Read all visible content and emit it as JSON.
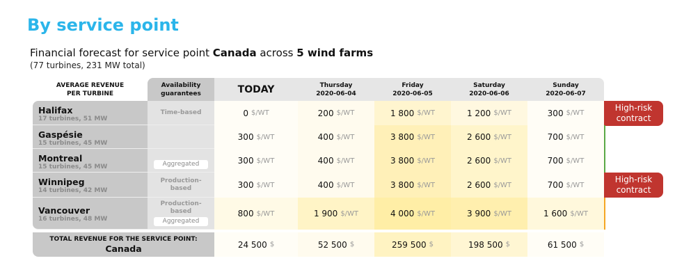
{
  "title": "By service point",
  "subtitle": {
    "pre": "Financial forecast for service point ",
    "sp": "Canada",
    "mid": " across ",
    "farms": "5 wind farms"
  },
  "summary": "(77 turbines, 231 MW total)",
  "headers": {
    "avg": "AVERAGE REVENUE PER TURBINE",
    "avail": "Availability guarantees",
    "today": "TODAY",
    "days": [
      {
        "day": "Thursday",
        "date": "2020-06-04"
      },
      {
        "day": "Friday",
        "date": "2020-06-05"
      },
      {
        "day": "Saturday",
        "date": "2020-06-06"
      },
      {
        "day": "Sunday",
        "date": "2020-06-07"
      }
    ]
  },
  "unit": "$/WT",
  "total_unit": "$",
  "rows": [
    {
      "name": "Halifax",
      "info": "17 turbines, 51 MW",
      "avail": "Time-based",
      "pill": "",
      "values": [
        "0",
        "200",
        "1 800",
        "1 200",
        "300"
      ],
      "colors": [
        "#fffdf6",
        "#fffbee",
        "#fff5cf",
        "#fff8e0",
        "#fffdf6"
      ],
      "badge": "High-risk contract",
      "marker": ""
    },
    {
      "name": "Gaspésie",
      "info": "15 turbines, 45 MW",
      "avail": "",
      "pill": "",
      "values": [
        "300",
        "400",
        "3 800",
        "2 600",
        "700"
      ],
      "colors": [
        "#fffdf6",
        "#fffbee",
        "#fff0b8",
        "#fff5cb",
        "#fffdf6"
      ],
      "badge": "",
      "marker": "#5aa845"
    },
    {
      "name": "Montreal",
      "info": "15 turbines, 45 MW",
      "avail": "",
      "pill": "Aggregated",
      "values": [
        "300",
        "400",
        "3 800",
        "2 600",
        "700"
      ],
      "colors": [
        "#fffdf6",
        "#fffbee",
        "#fff0b8",
        "#fff5cb",
        "#fffdf6"
      ],
      "badge": "",
      "marker": "#5aa845"
    },
    {
      "name": "Winnipeg",
      "info": "14 turbines, 42 MW",
      "avail": "Production-based",
      "pill": "",
      "values": [
        "300",
        "400",
        "3 800",
        "2 600",
        "700"
      ],
      "colors": [
        "#fffdf6",
        "#fffbee",
        "#fff0b8",
        "#fff5cb",
        "#fffdf6"
      ],
      "badge": "High-risk contract",
      "marker": "#5aa845"
    },
    {
      "name": "Vancouver",
      "info": "16 turbines, 48 MW",
      "avail": "Production-based",
      "pill": "Aggregated",
      "values": [
        "800",
        "1 900",
        "4 000",
        "3 900",
        "1 600"
      ],
      "colors": [
        "#fffae6",
        "#fff4c6",
        "#ffeea6",
        "#ffefae",
        "#fff8dc"
      ],
      "badge": "",
      "marker": "#f5a623"
    }
  ],
  "total": {
    "label": "TOTAL REVENUE FOR THE SERVICE POINT:",
    "sp": "Canada",
    "values": [
      "24 500",
      "52 500",
      "259 500",
      "198 500",
      "61 500"
    ],
    "colors": [
      "#fffdf6",
      "#fffbee",
      "#fff3c2",
      "#fff6d3",
      "#fffdf6"
    ]
  }
}
